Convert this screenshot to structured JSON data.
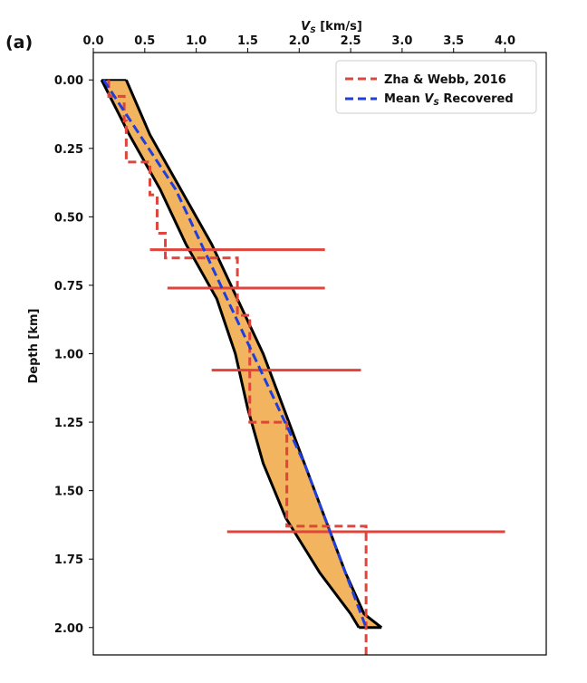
{
  "panel_label": "(a)",
  "colors": {
    "band_fill": "#f0aa48",
    "band_outline": "#000000",
    "reference": "#e0443a",
    "mean": "#1f3ee0"
  },
  "chart_data": {
    "type": "line",
    "xlabel": "V_S [km/s]",
    "xlabel_main": "V",
    "xlabel_sub": "S",
    "xlabel_rest": " [km/s]",
    "ylabel": "Depth [km]",
    "xlim": [
      0,
      4.4
    ],
    "ylim": [
      2.1,
      -0.1
    ],
    "x_ticks": [
      "0.0",
      "0.5",
      "1.0",
      "1.5",
      "2.0",
      "2.5",
      "3.0",
      "3.5",
      "4.0"
    ],
    "y_ticks": [
      "0.00",
      "0.25",
      "0.50",
      "0.75",
      "1.00",
      "1.25",
      "1.50",
      "1.75",
      "2.00"
    ],
    "x_axis_position": "top",
    "legend_position": "top-right",
    "legend": [
      {
        "label": "Zha & Webb, 2016",
        "style": "dashed",
        "color": "#e0443a"
      },
      {
        "label_main": "Mean ",
        "label_italic": "V",
        "label_sub": "S",
        "label_rest": " Recovered",
        "style": "dashed",
        "color": "#1f3ee0"
      }
    ],
    "series": [
      {
        "name": "Zha & Webb, 2016",
        "style": "dashed-step",
        "vs": [
          0.15,
          0.3,
          0.32,
          0.55,
          0.62,
          0.7,
          1.4,
          1.52,
          1.88,
          2.65,
          2.65,
          2.2
        ],
        "depth_top": [
          0.0,
          0.06,
          0.15,
          0.3,
          0.42,
          0.56,
          0.65,
          0.86,
          1.25,
          1.63,
          2.05,
          2.13
        ],
        "depth_bottom": [
          0.06,
          0.15,
          0.3,
          0.42,
          0.56,
          0.65,
          0.86,
          1.25,
          1.63,
          2.05,
          2.13,
          2.13
        ]
      },
      {
        "name": "Mean V_S Recovered",
        "style": "dashed",
        "vs": [
          0.1,
          0.45,
          0.8,
          1.05,
          1.3,
          1.55,
          1.8,
          2.05,
          2.25,
          2.45,
          2.65
        ],
        "depth": [
          0.0,
          0.2,
          0.4,
          0.6,
          0.8,
          1.0,
          1.2,
          1.4,
          1.6,
          1.8,
          2.0
        ]
      }
    ],
    "band": {
      "vs_min": [
        0.08,
        0.35,
        0.65,
        0.9,
        1.2,
        1.38,
        1.5,
        1.65,
        1.87,
        2.2,
        2.5,
        2.58
      ],
      "vs_max": [
        0.32,
        0.55,
        0.85,
        1.15,
        1.4,
        1.65,
        1.85,
        2.05,
        2.25,
        2.45,
        2.63,
        2.8
      ],
      "depth": [
        0.0,
        0.2,
        0.4,
        0.6,
        0.8,
        1.0,
        1.2,
        1.4,
        1.6,
        1.8,
        1.95,
        2.0
      ]
    },
    "error_bars": [
      {
        "depth": 0.62,
        "vs_min": 0.55,
        "vs_max": 2.25
      },
      {
        "depth": 0.76,
        "vs_min": 0.72,
        "vs_max": 2.25
      },
      {
        "depth": 1.06,
        "vs_min": 1.15,
        "vs_max": 2.6
      },
      {
        "depth": 1.65,
        "vs_min": 1.3,
        "vs_max": 4.0
      }
    ]
  }
}
